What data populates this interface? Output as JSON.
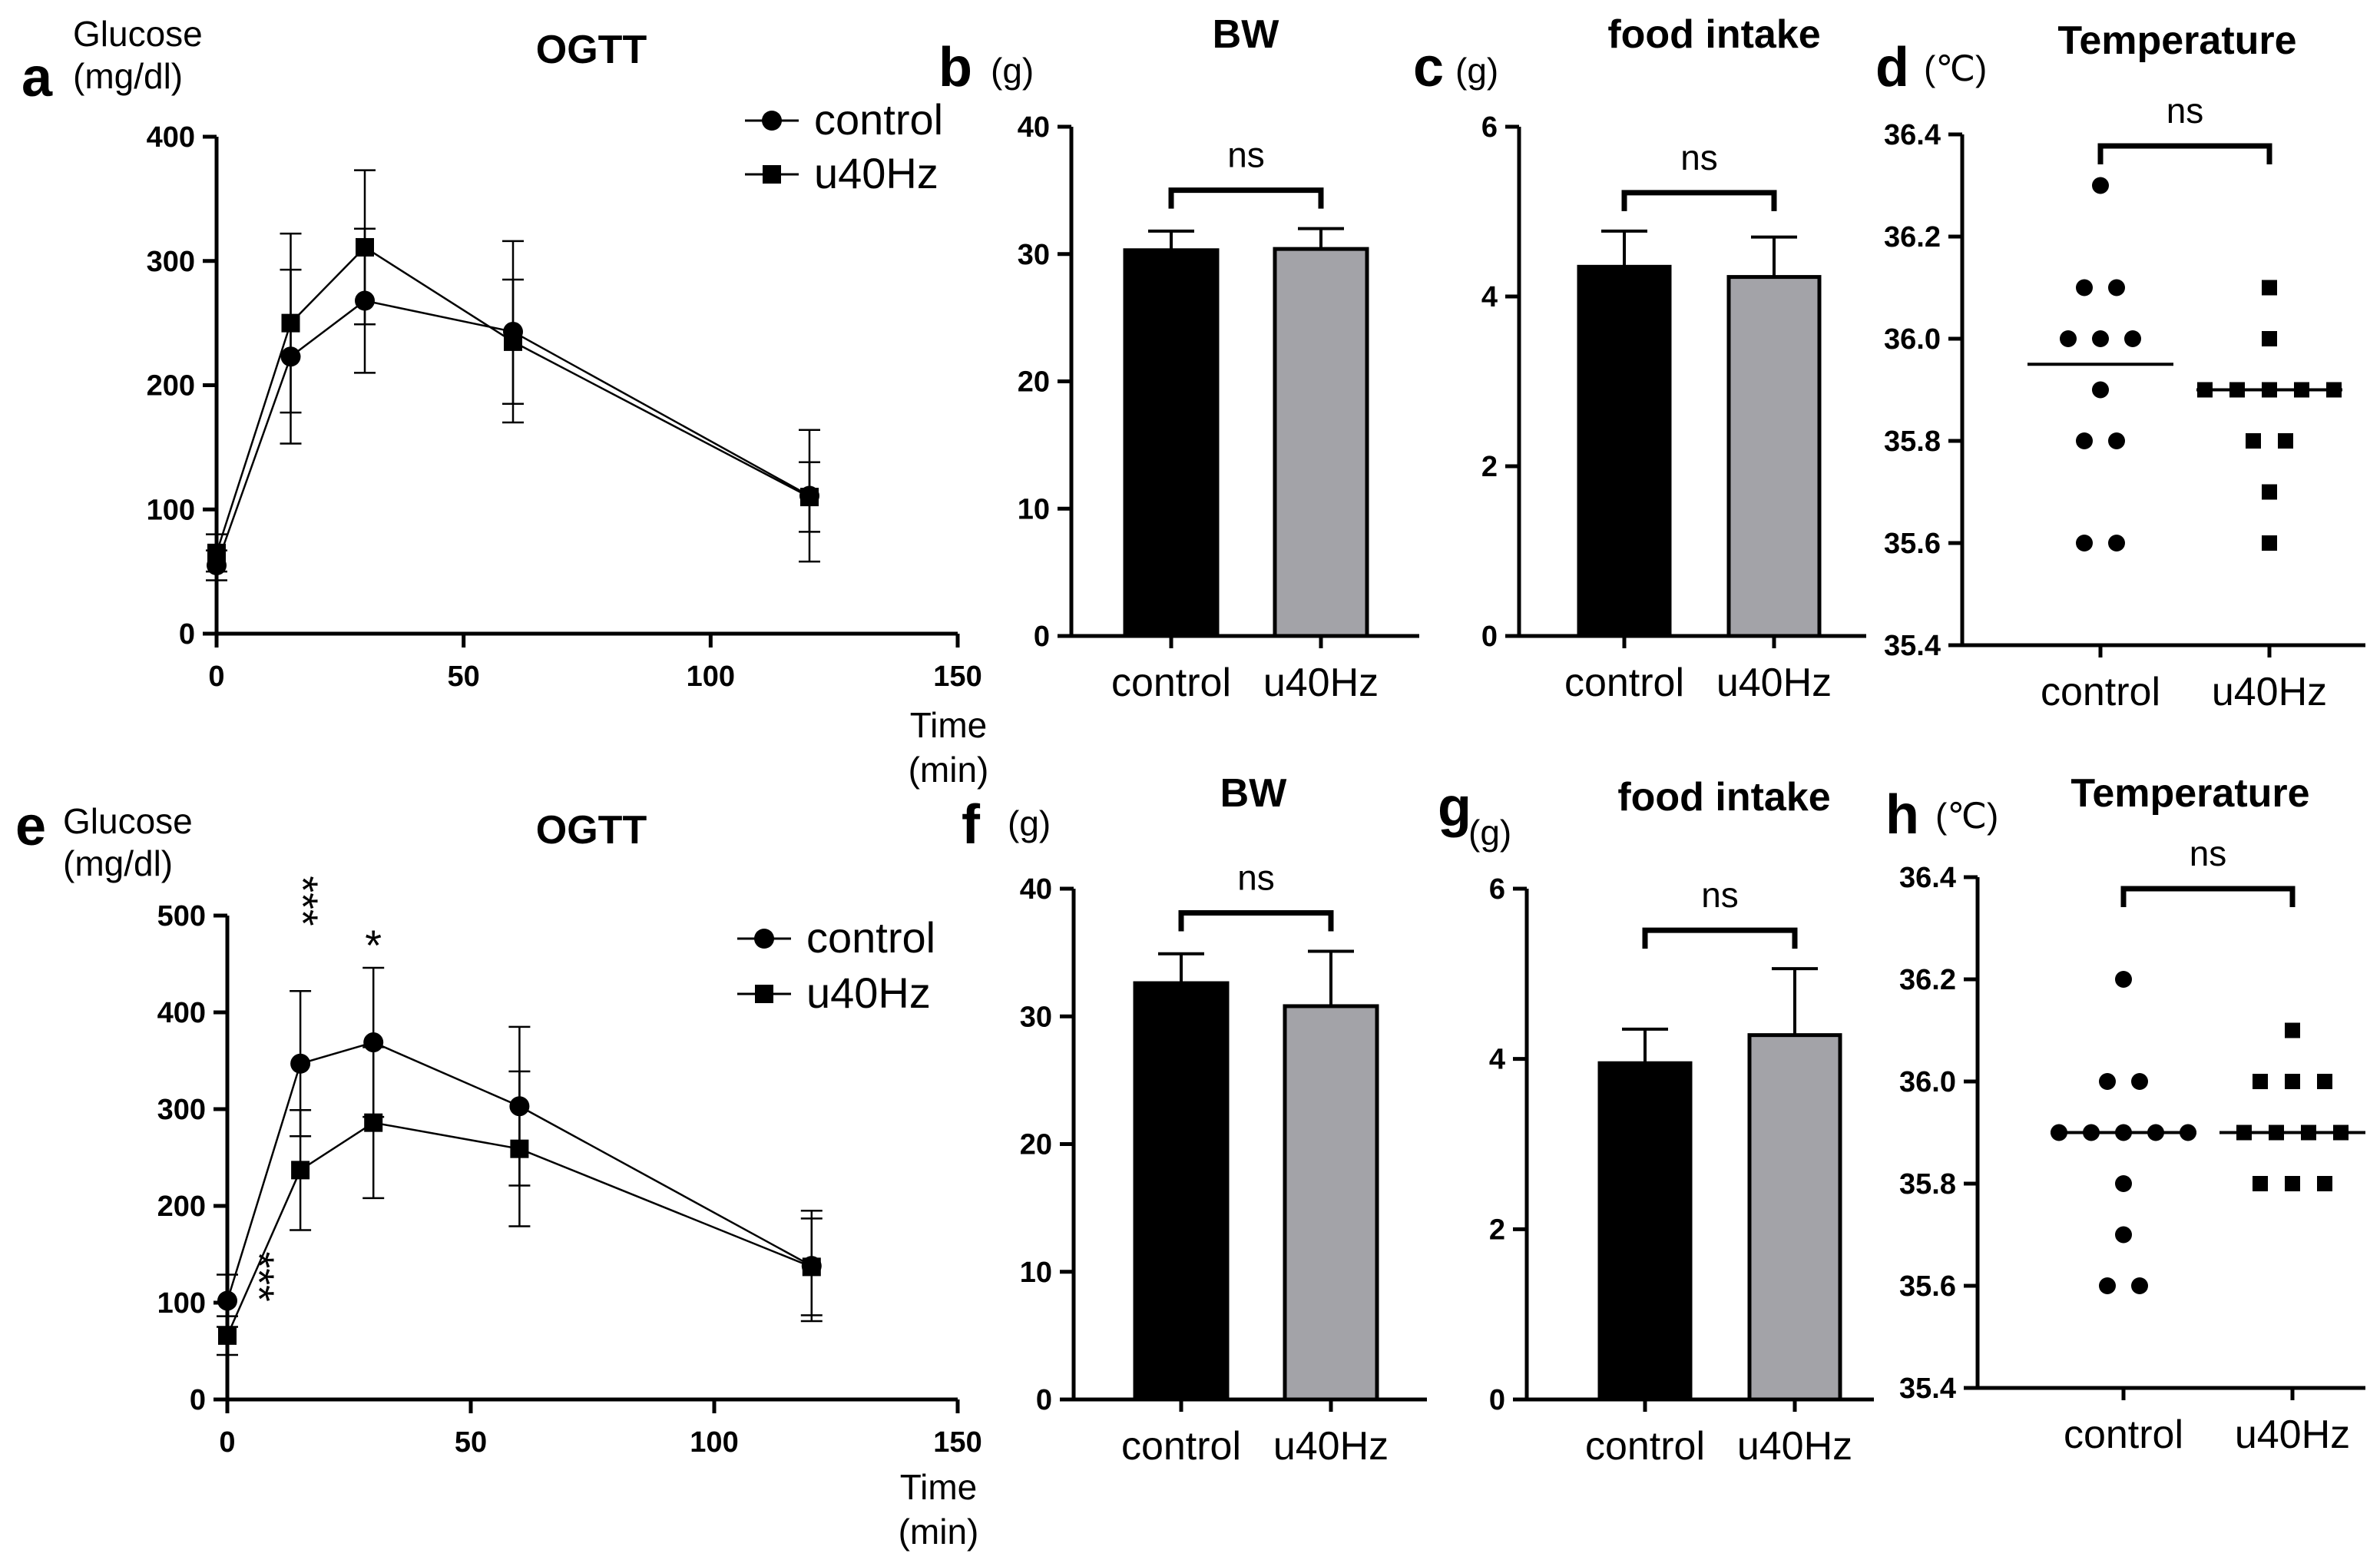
{
  "colors": {
    "control": "#000000",
    "u40Hz": "#a3a3a8",
    "axis": "#000000"
  },
  "chart_data": [
    {
      "id": "a",
      "type": "line",
      "panel_label": "a",
      "title": "OGTT",
      "ylabel_line1": "Glucose",
      "ylabel_line2": "(mg/dl)",
      "xlabel_line1": "Time",
      "xlabel_line2": "(min)",
      "ylim": [
        0,
        400
      ],
      "yticks": [
        0,
        100,
        200,
        300,
        400
      ],
      "xlim": [
        0,
        150
      ],
      "xticks": [
        0,
        50,
        100,
        150
      ],
      "legend_position": "top-right",
      "x": [
        0,
        15,
        30,
        60,
        120
      ],
      "series": [
        {
          "name": "control",
          "marker": "circle",
          "values": [
            55,
            223,
            268,
            243,
            111
          ],
          "sd": [
            12,
            70,
            58,
            73,
            53
          ]
        },
        {
          "name": "u40Hz",
          "marker": "square",
          "values": [
            65,
            250,
            311,
            235,
            110
          ],
          "sd": [
            15,
            72,
            62,
            50,
            28
          ]
        }
      ],
      "annotations": []
    },
    {
      "id": "b",
      "type": "bar",
      "panel_label": "b",
      "title": "BW",
      "unit": "(g)",
      "ylim": [
        0,
        40
      ],
      "yticks": [
        0,
        10,
        20,
        30,
        40
      ],
      "categories": [
        "control",
        "u40Hz"
      ],
      "values": [
        30.3,
        30.4
      ],
      "sd": [
        1.5,
        1.6
      ],
      "significance": "ns"
    },
    {
      "id": "c",
      "type": "bar",
      "panel_label": "c",
      "title": "food intake",
      "unit": "(g)",
      "ylim": [
        0,
        6
      ],
      "yticks": [
        0,
        2,
        4,
        6
      ],
      "categories": [
        "control",
        "u40Hz"
      ],
      "values": [
        4.35,
        4.23
      ],
      "sd": [
        0.42,
        0.47
      ],
      "significance": "ns"
    },
    {
      "id": "d",
      "type": "scatter",
      "panel_label": "d",
      "title": "Temperature",
      "unit": "(℃)",
      "ylim": [
        35.4,
        36.4
      ],
      "yticks": [
        "35.4",
        "35.6",
        "35.8",
        "36.0",
        "36.2",
        "36.4"
      ],
      "categories": [
        "control",
        "u40Hz"
      ],
      "points": [
        [
          36.3,
          36.1,
          36.1,
          36.0,
          36.0,
          36.0,
          35.9,
          35.8,
          35.8,
          35.6,
          35.6
        ],
        [
          36.1,
          36.0,
          35.9,
          35.9,
          35.9,
          35.9,
          35.9,
          35.8,
          35.8,
          35.7,
          35.6
        ]
      ],
      "means": [
        35.95,
        35.9
      ],
      "significance": "ns"
    },
    {
      "id": "e",
      "type": "line",
      "panel_label": "e",
      "title": "OGTT",
      "ylabel_line1": "Glucose",
      "ylabel_line2": "(mg/dl)",
      "xlabel_line1": "Time",
      "xlabel_line2": "(min)",
      "ylim": [
        0,
        500
      ],
      "yticks": [
        0,
        100,
        200,
        300,
        400,
        500
      ],
      "xlim": [
        0,
        150
      ],
      "xticks": [
        0,
        50,
        100,
        150
      ],
      "legend_position": "top-right",
      "x": [
        0,
        15,
        30,
        60,
        120
      ],
      "series": [
        {
          "name": "control",
          "marker": "circle",
          "values": [
            102,
            347,
            369,
            303,
            138
          ],
          "sd": [
            27,
            75,
            77,
            82,
            57
          ]
        },
        {
          "name": "u40Hz",
          "marker": "square",
          "values": [
            66,
            237,
            286,
            259,
            137
          ],
          "sd": [
            20,
            62,
            78,
            80,
            50
          ]
        }
      ],
      "annotations": [
        {
          "text": "***",
          "x": 0,
          "pos": "rotated"
        },
        {
          "text": "***",
          "x": 15,
          "pos": "vertical"
        },
        {
          "text": "*",
          "x": 30,
          "pos": "above"
        }
      ]
    },
    {
      "id": "f",
      "type": "bar",
      "panel_label": "f",
      "title": "BW",
      "unit": "(g)",
      "ylim": [
        0,
        40
      ],
      "yticks": [
        0,
        10,
        20,
        30,
        40
      ],
      "categories": [
        "control",
        "u40Hz"
      ],
      "values": [
        32.6,
        30.8
      ],
      "sd": [
        2.3,
        4.3
      ],
      "significance": "ns"
    },
    {
      "id": "g",
      "type": "bar",
      "panel_label": "g",
      "title": "food intake",
      "unit": "(g)",
      "ylim": [
        0,
        6
      ],
      "yticks": [
        0,
        2,
        4,
        6
      ],
      "categories": [
        "control",
        "u40Hz"
      ],
      "values": [
        3.95,
        4.28
      ],
      "sd": [
        0.4,
        0.78
      ],
      "significance": "ns"
    },
    {
      "id": "h",
      "type": "scatter",
      "panel_label": "h",
      "title": "Temperature",
      "unit": "(℃)",
      "ylim": [
        35.4,
        36.4
      ],
      "yticks": [
        "35.4",
        "35.6",
        "35.8",
        "36.0",
        "36.2",
        "36.4"
      ],
      "categories": [
        "control",
        "u40Hz"
      ],
      "points": [
        [
          36.2,
          36.0,
          36.0,
          35.9,
          35.9,
          35.9,
          35.9,
          35.9,
          35.8,
          35.7,
          35.6,
          35.6
        ],
        [
          36.1,
          36.0,
          36.0,
          36.0,
          35.9,
          35.9,
          35.9,
          35.9,
          35.8,
          35.8,
          35.8
        ]
      ],
      "means": [
        35.9,
        35.9
      ],
      "significance": "ns"
    }
  ]
}
